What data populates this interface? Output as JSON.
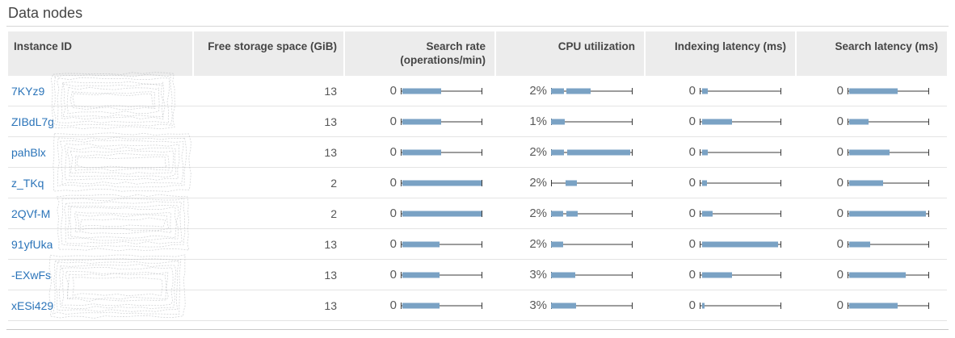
{
  "page": {
    "title": "Data nodes"
  },
  "colors": {
    "bar": "#7aa2c4",
    "whisker": "#3a3a3a",
    "link": "#2b74b9",
    "header_bg": "#ececec",
    "scribble": "#a7abb0"
  },
  "table": {
    "columns": [
      {
        "label": "Instance ID"
      },
      {
        "label": "Free storage space (GiB)"
      },
      {
        "label": "Search rate",
        "label2": "(operations/min)"
      },
      {
        "label": "CPU utilization"
      },
      {
        "label": "Indexing latency (ms)"
      },
      {
        "label": "Search latency (ms)"
      }
    ],
    "rows": [
      {
        "instance_id": "7KYz9",
        "free_storage": "13",
        "search_rate": {
          "value": "0",
          "bars": [
            [
              2,
              50
            ]
          ]
        },
        "cpu": {
          "value": "2%",
          "bars": [
            [
              0,
              16
            ],
            [
              19,
              49
            ]
          ]
        },
        "indexing_latency": {
          "value": "0",
          "bars": [
            [
              3,
              10
            ]
          ]
        },
        "search_latency": {
          "value": "0",
          "bars": [
            [
              2,
              62
            ]
          ]
        }
      },
      {
        "instance_id": "ZIBdL7g",
        "free_storage": "13",
        "search_rate": {
          "value": "0",
          "bars": [
            [
              2,
              50
            ]
          ]
        },
        "cpu": {
          "value": "1%",
          "bars": [
            [
              0,
              17
            ]
          ]
        },
        "indexing_latency": {
          "value": "0",
          "bars": [
            [
              3,
              40
            ]
          ]
        },
        "search_latency": {
          "value": "0",
          "bars": [
            [
              2,
              26
            ]
          ]
        }
      },
      {
        "instance_id": "pahBlx",
        "free_storage": "13",
        "search_rate": {
          "value": "0",
          "bars": [
            [
              2,
              50
            ]
          ]
        },
        "cpu": {
          "value": "2%",
          "bars": [
            [
              0,
              16
            ],
            [
              20,
              98
            ]
          ]
        },
        "indexing_latency": {
          "value": "0",
          "bars": [
            [
              3,
              10
            ]
          ]
        },
        "search_latency": {
          "value": "0",
          "bars": [
            [
              2,
              52
            ]
          ]
        }
      },
      {
        "instance_id": "z_TKq",
        "free_storage": "2",
        "search_rate": {
          "value": "0",
          "bars": [
            [
              2,
              100
            ]
          ]
        },
        "cpu": {
          "value": "2%",
          "bars": [
            [
              18,
              32
            ]
          ]
        },
        "indexing_latency": {
          "value": "0",
          "bars": [
            [
              3,
              9
            ]
          ]
        },
        "search_latency": {
          "value": "0",
          "bars": [
            [
              2,
              44
            ]
          ]
        }
      },
      {
        "instance_id": "2QVf-M",
        "free_storage": "2",
        "search_rate": {
          "value": "0",
          "bars": [
            [
              2,
              100
            ]
          ]
        },
        "cpu": {
          "value": "2%",
          "bars": [
            [
              0,
              15
            ],
            [
              19,
              33
            ]
          ]
        },
        "indexing_latency": {
          "value": "0",
          "bars": [
            [
              3,
              16
            ]
          ]
        },
        "search_latency": {
          "value": "0",
          "bars": [
            [
              2,
              97
            ]
          ]
        }
      },
      {
        "instance_id": "91yfUka",
        "free_storage": "13",
        "search_rate": {
          "value": "0",
          "bars": [
            [
              2,
              48
            ]
          ]
        },
        "cpu": {
          "value": "2%",
          "bars": [
            [
              0,
              15
            ]
          ]
        },
        "indexing_latency": {
          "value": "0",
          "bars": [
            [
              3,
              97
            ]
          ]
        },
        "search_latency": {
          "value": "0",
          "bars": [
            [
              2,
              28
            ]
          ]
        }
      },
      {
        "instance_id": "-EXwFs",
        "free_storage": "13",
        "search_rate": {
          "value": "0",
          "bars": [
            [
              2,
              48
            ]
          ]
        },
        "cpu": {
          "value": "3%",
          "bars": [
            [
              0,
              30
            ]
          ]
        },
        "indexing_latency": {
          "value": "0",
          "bars": [
            [
              3,
              40
            ]
          ]
        },
        "search_latency": {
          "value": "0",
          "bars": [
            [
              2,
              72
            ]
          ]
        }
      },
      {
        "instance_id": "xESi429",
        "free_storage": "13",
        "search_rate": {
          "value": "0",
          "bars": [
            [
              2,
              48
            ]
          ]
        },
        "cpu": {
          "value": "3%",
          "bars": [
            [
              0,
              31
            ]
          ]
        },
        "indexing_latency": {
          "value": "0",
          "bars": [
            [
              3,
              6
            ]
          ]
        },
        "search_latency": {
          "value": "0",
          "bars": [
            [
              2,
              62
            ]
          ]
        }
      }
    ]
  }
}
